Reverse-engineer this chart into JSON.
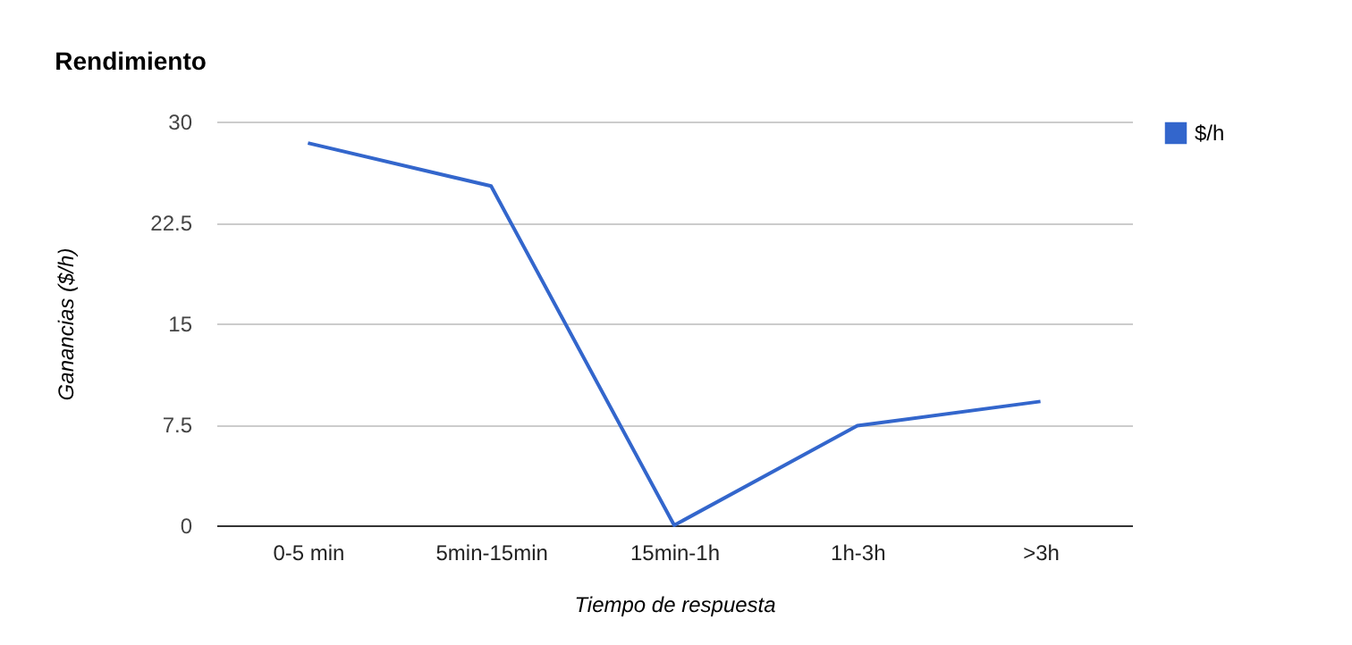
{
  "chart_data": {
    "type": "line",
    "title": "Rendimiento",
    "xlabel": "Tiempo de respuesta",
    "ylabel": "Ganancias ($/h)",
    "categories": [
      "0-5 min",
      "5min-15min",
      "15min-1h",
      "1h-3h",
      ">3h"
    ],
    "series": [
      {
        "name": "$/h",
        "color": "#3366cc",
        "values": [
          28.4,
          25.2,
          0,
          7.4,
          9.2
        ]
      }
    ],
    "ylim": [
      0,
      30
    ],
    "yticks": [
      0,
      7.5,
      15,
      22.5,
      30
    ],
    "grid": "y",
    "legend": "top right",
    "marker": "none",
    "line_style": "solid"
  }
}
